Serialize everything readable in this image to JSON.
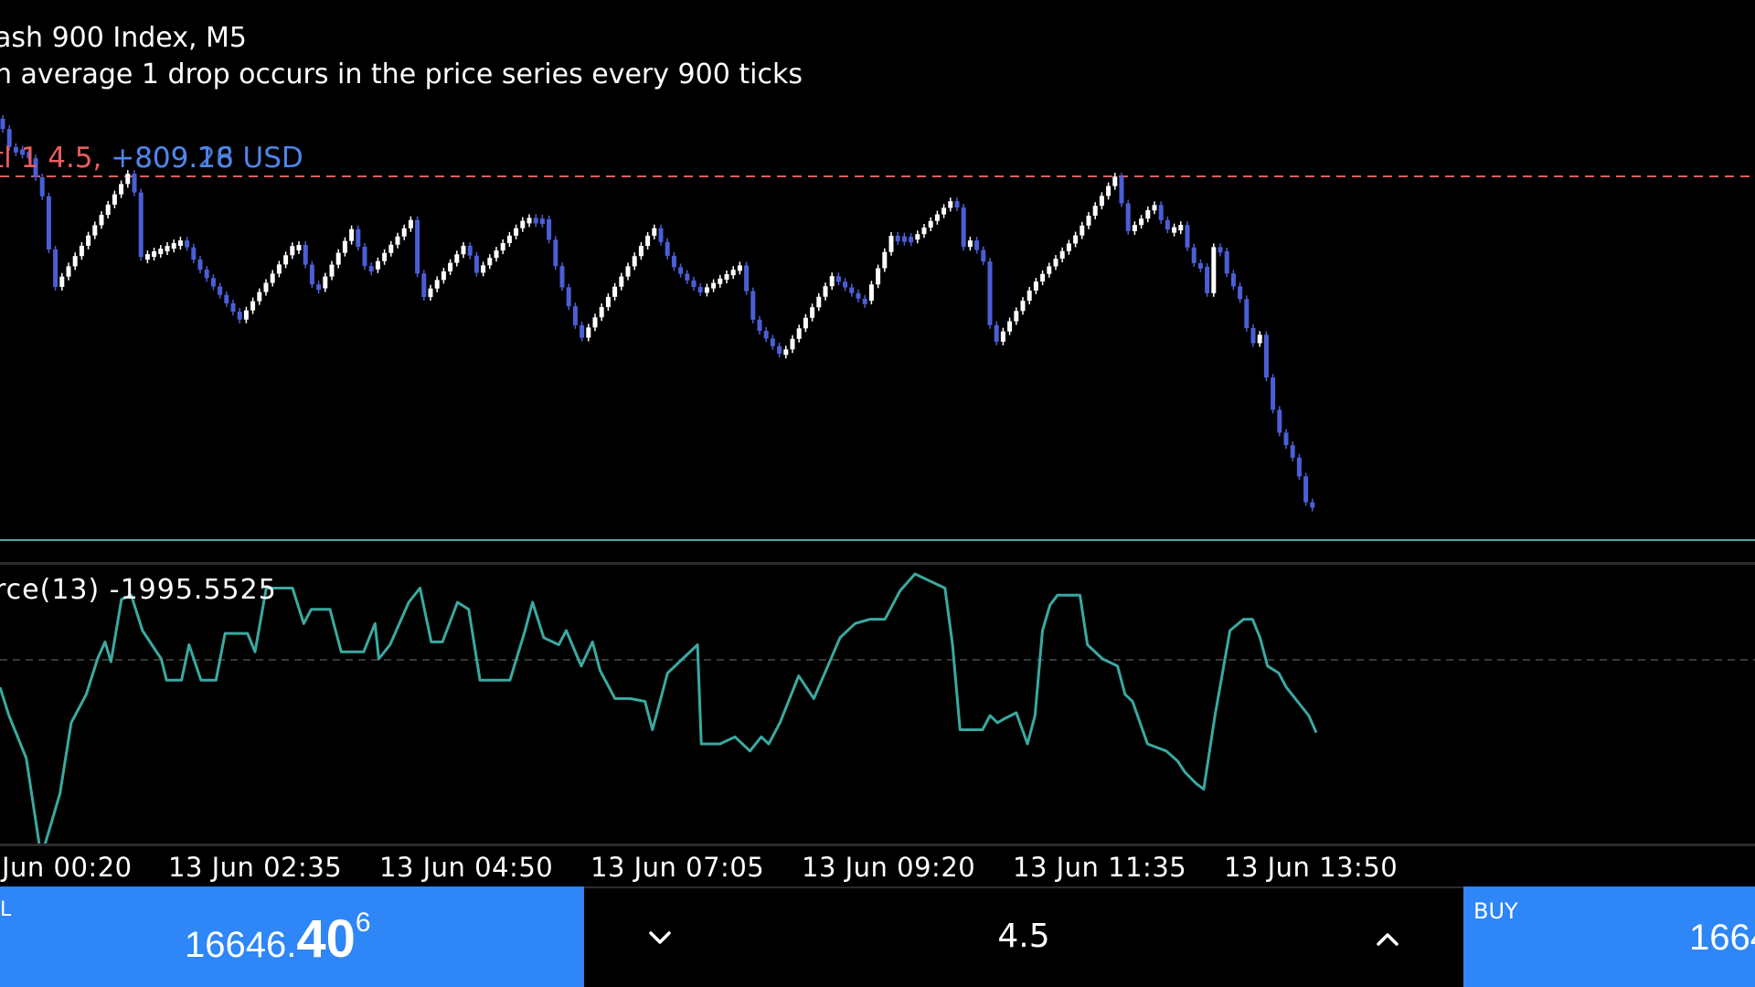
{
  "chart": {
    "title": "ash 900 Index, M5",
    "description": "n average 1 drop occurs in the price series every 900 ticks",
    "position_prefix": "tl 1",
    "position_volume": "4.5,",
    "position_profit_a": "+809.18",
    "position_profit_b": "+809.26",
    "position_currency": "USD",
    "colors": {
      "background": "#000000",
      "candle_bull": "#ffffff",
      "candle_bear": "#4a5fd6",
      "stop_line": "#e35b5b",
      "bid_line": "#4ea9a4",
      "indicator_line": "#3aa9a1",
      "accent_blue": "#2e86f7"
    }
  },
  "indicator": {
    "label": "rce(13) -1995.5525"
  },
  "time_axis": {
    "ticks": [
      "Jun 00:20",
      "13 Jun 02:35",
      "13 Jun 04:50",
      "13 Jun 07:05",
      "13 Jun 09:20",
      "13 Jun 11:35",
      "13 Jun 13:50"
    ]
  },
  "trade_panel": {
    "sell_label": "L",
    "sell_price_small": "16646.",
    "sell_price_big": "40",
    "sell_price_sup": "6",
    "volume": "4.5",
    "buy_label": "BUY",
    "buy_price": "1664",
    "icons": {
      "volume_down": "chevron-down-icon",
      "volume_up": "chevron-up-icon"
    }
  }
}
